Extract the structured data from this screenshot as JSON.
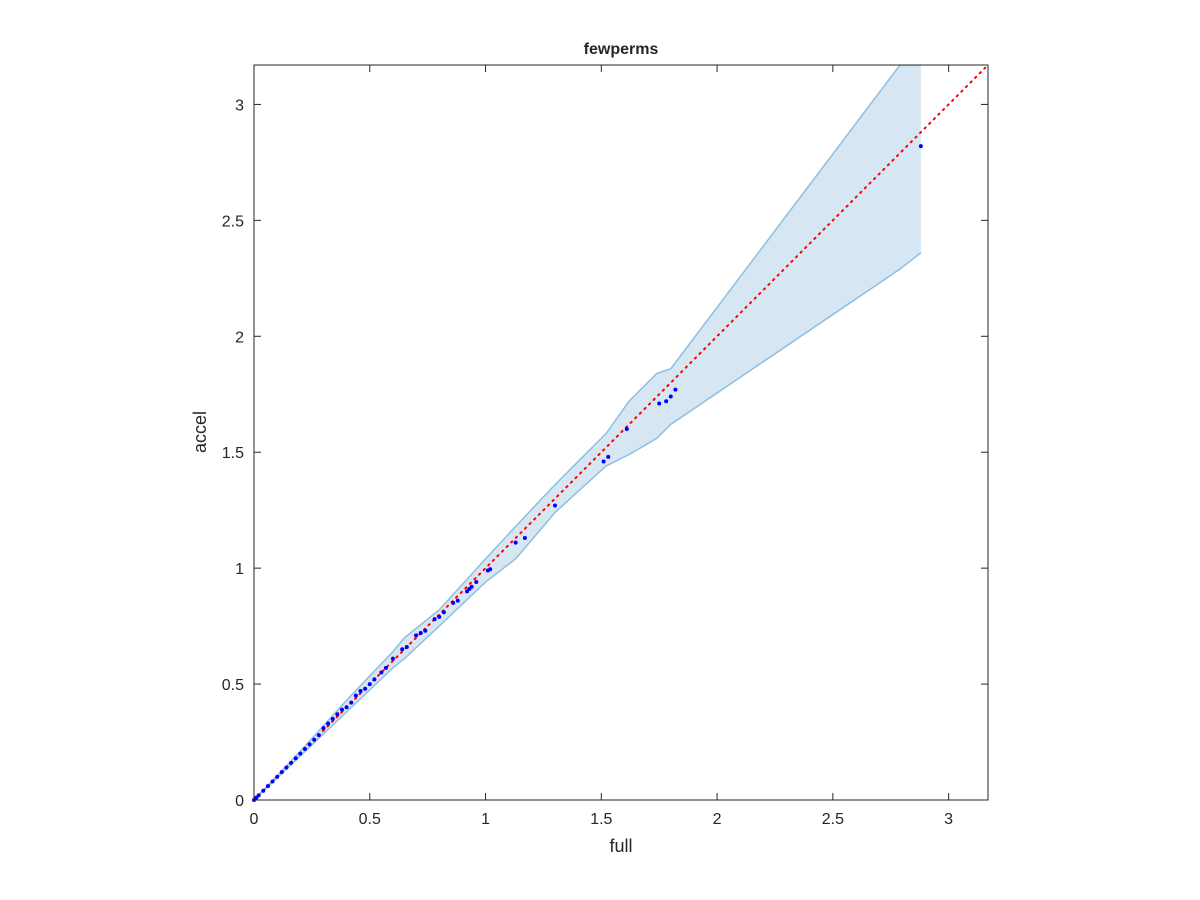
{
  "chart_data": {
    "type": "scatter",
    "title": "fewperms",
    "xlabel": "full",
    "ylabel": "accel",
    "xlim": [
      0,
      3.17
    ],
    "ylim": [
      0,
      3.17
    ],
    "xticks": [
      0,
      0.5,
      1,
      1.5,
      2,
      2.5,
      3
    ],
    "yticks": [
      0,
      0.5,
      1,
      1.5,
      2,
      2.5,
      3
    ],
    "grid": false,
    "series": [
      {
        "color": "#0000ff",
        "x": [
          0,
          0.01,
          0.02,
          0.04,
          0.06,
          0.08,
          0.1,
          0.12,
          0.14,
          0.16,
          0.18,
          0.2,
          0.22,
          0.24,
          0.26,
          0.28,
          0.3,
          0.32,
          0.34,
          0.36,
          0.38,
          0.4,
          0.42,
          0.44,
          0.46,
          0.48,
          0.5,
          0.52,
          0.55,
          0.57,
          0.6,
          0.64,
          0.66,
          0.7,
          0.72,
          0.74,
          0.78,
          0.8,
          0.82,
          0.86,
          0.88,
          0.92,
          0.93,
          0.94,
          0.96,
          1.01,
          1.02,
          1.13,
          1.17,
          1.3,
          1.51,
          1.53,
          1.61,
          1.75,
          1.78,
          1.8,
          1.82,
          2.88
        ],
        "values": [
          0,
          0.01,
          0.02,
          0.04,
          0.06,
          0.08,
          0.1,
          0.12,
          0.14,
          0.16,
          0.18,
          0.2,
          0.22,
          0.24,
          0.26,
          0.28,
          0.31,
          0.33,
          0.35,
          0.37,
          0.39,
          0.4,
          0.42,
          0.45,
          0.47,
          0.48,
          0.5,
          0.52,
          0.55,
          0.57,
          0.61,
          0.65,
          0.66,
          0.71,
          0.72,
          0.73,
          0.78,
          0.79,
          0.81,
          0.85,
          0.86,
          0.9,
          0.91,
          0.92,
          0.94,
          0.99,
          0.995,
          1.11,
          1.13,
          1.27,
          1.46,
          1.48,
          1.6,
          1.71,
          1.72,
          1.74,
          1.77,
          2.82
        ]
      }
    ],
    "band": {
      "color": "#d6e7f3",
      "edge_color": "#8cbfe0",
      "x": [
        0,
        0.2,
        0.4,
        0.6,
        0.65,
        0.8,
        1.0,
        1.13,
        1.3,
        1.52,
        1.62,
        1.74,
        1.8,
        2.79,
        2.88
      ],
      "upper": [
        0,
        0.21,
        0.43,
        0.64,
        0.7,
        0.82,
        1.04,
        1.18,
        1.36,
        1.58,
        1.72,
        1.84,
        1.86,
        3.17,
        3.17
      ],
      "lower": [
        0,
        0.19,
        0.38,
        0.57,
        0.61,
        0.75,
        0.94,
        1.04,
        1.24,
        1.44,
        1.49,
        1.56,
        1.62,
        2.29,
        2.36
      ]
    },
    "reference_line": {
      "color": "#ff0000",
      "x": [
        0,
        3.17
      ],
      "y": [
        0,
        3.17
      ]
    }
  }
}
